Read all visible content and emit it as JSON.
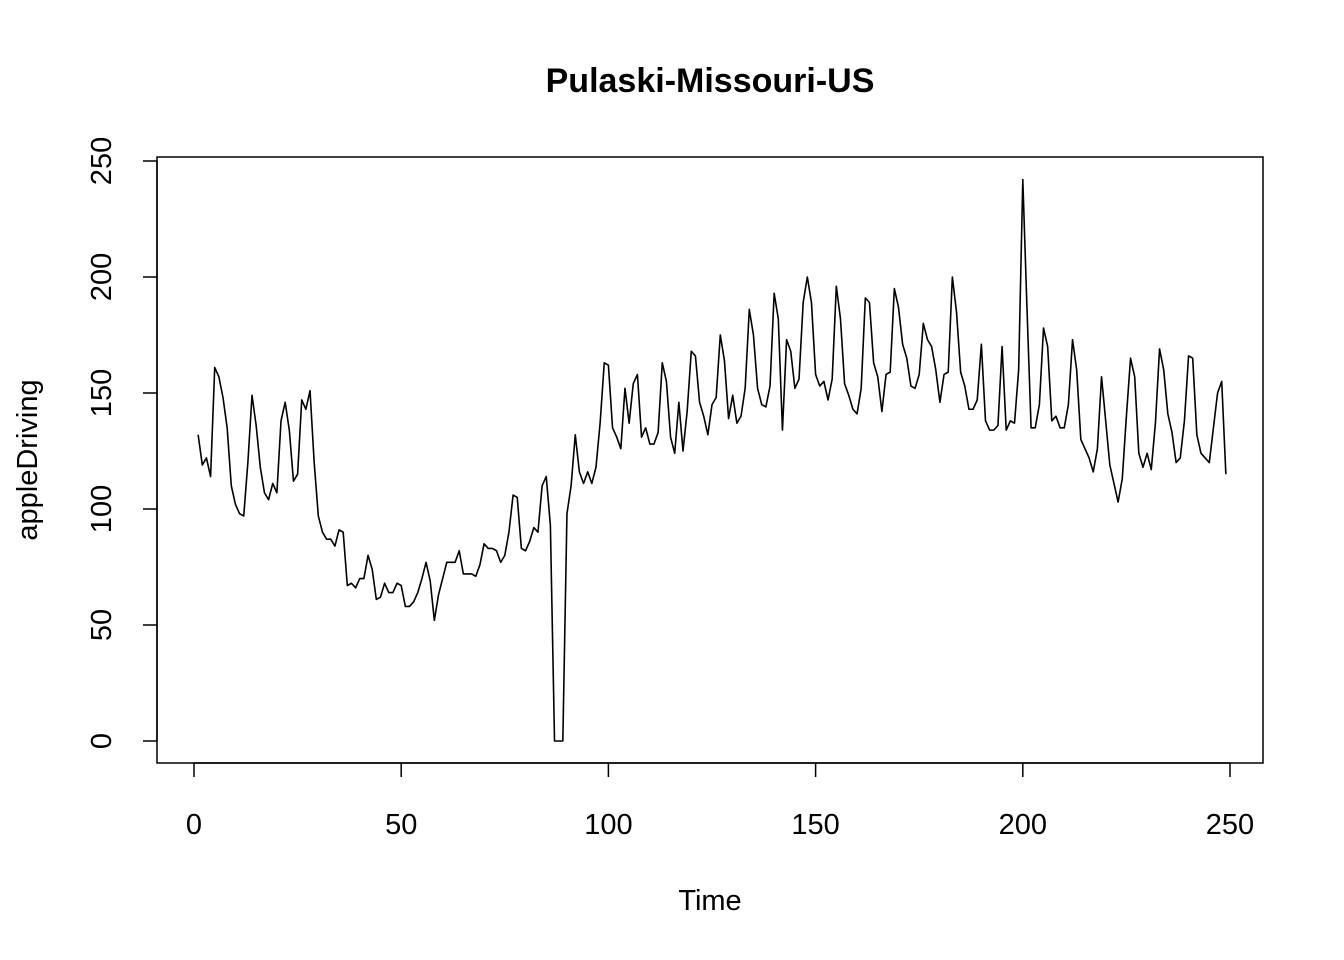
{
  "chart_data": {
    "type": "line",
    "title": "Pulaski-Missouri-US",
    "xlabel": "Time",
    "ylabel": "appleDriving",
    "xlim": [
      0,
      250
    ],
    "ylim": [
      0,
      250
    ],
    "x_ticks": [
      0,
      50,
      100,
      150,
      200,
      250
    ],
    "y_ticks": [
      0,
      50,
      100,
      150,
      200,
      250
    ],
    "x_tick_labels": [
      "0",
      "50",
      "100",
      "150",
      "200",
      "250"
    ],
    "y_tick_labels": [
      "0",
      "50",
      "100",
      "150",
      "200",
      "250"
    ],
    "grid": false,
    "legend": "none",
    "x_start": 1,
    "x_step": 1,
    "values": [
      132,
      119,
      122,
      114,
      161,
      157,
      148,
      135,
      110,
      102,
      98,
      97,
      120,
      149,
      136,
      118,
      107,
      104,
      111,
      107,
      138,
      146,
      134,
      112,
      115,
      147,
      143,
      151,
      120,
      97,
      90,
      87,
      87,
      84,
      91,
      90,
      67,
      68,
      66,
      70,
      70,
      80,
      74,
      61,
      62,
      68,
      64,
      64,
      68,
      67,
      58,
      58,
      60,
      64,
      70,
      77,
      69,
      52,
      63,
      70,
      77,
      77,
      77,
      82,
      72,
      72,
      72,
      71,
      76,
      85,
      83,
      83,
      82,
      77,
      80,
      90,
      106,
      105,
      83,
      82,
      86,
      92,
      90,
      110,
      114,
      93,
      0,
      0,
      0,
      98,
      110,
      132,
      116,
      111,
      116,
      111,
      118,
      137,
      163,
      162,
      135,
      131,
      126,
      152,
      137,
      154,
      158,
      131,
      135,
      128,
      128,
      133,
      163,
      155,
      131,
      124,
      146,
      125,
      142,
      168,
      166,
      146,
      140,
      132,
      145,
      148,
      175,
      164,
      139,
      149,
      137,
      140,
      152,
      186,
      175,
      152,
      145,
      144,
      153,
      193,
      182,
      134,
      173,
      168,
      152,
      156,
      189,
      200,
      189,
      158,
      153,
      155,
      147,
      156,
      196,
      182,
      154,
      149,
      143,
      141,
      152,
      191,
      189,
      163,
      157,
      142,
      158,
      159,
      195,
      187,
      171,
      165,
      153,
      152,
      158,
      180,
      173,
      170,
      160,
      146,
      158,
      159,
      200,
      185,
      159,
      153,
      143,
      143,
      147,
      171,
      138,
      134,
      134,
      136,
      170,
      134,
      138,
      137,
      160,
      242,
      187,
      135,
      135,
      145,
      178,
      170,
      138,
      140,
      135,
      135,
      145,
      173,
      160,
      130,
      126,
      122,
      116,
      126,
      157,
      138,
      119,
      111,
      103,
      113,
      140,
      165,
      157,
      124,
      118,
      124,
      117,
      137,
      169,
      160,
      141,
      133,
      120,
      122,
      138,
      166,
      165,
      132,
      124,
      122,
      120,
      135,
      150,
      155,
      115
    ]
  }
}
